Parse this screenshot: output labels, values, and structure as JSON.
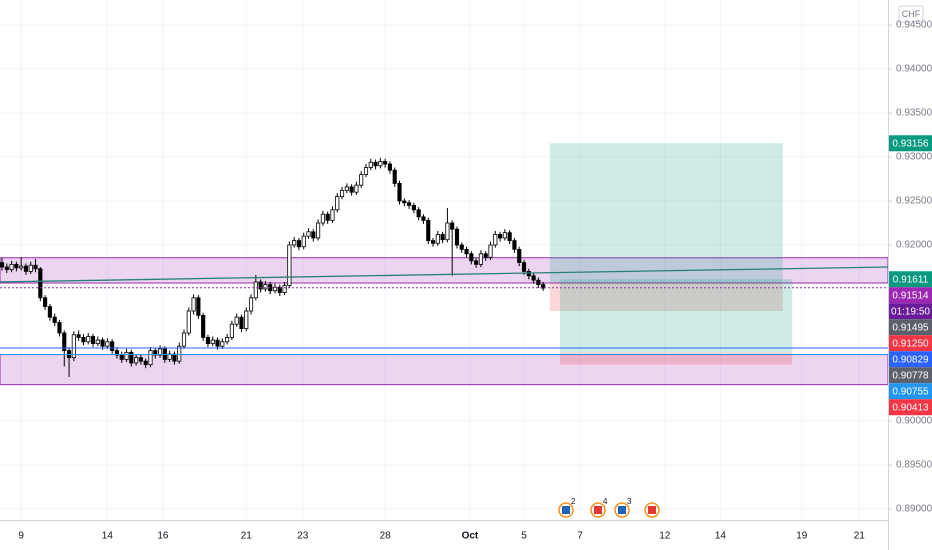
{
  "chart_data": {
    "type": "candlestick",
    "currency": "CHF",
    "xlim": [
      -0.42,
      185
    ],
    "ylim": [
      0.88875,
      0.94784
    ],
    "xticks": [
      {
        "value": 4,
        "label": "9"
      },
      {
        "value": 22,
        "label": "14"
      },
      {
        "value": 33.6,
        "label": "16"
      },
      {
        "value": 51,
        "label": "21"
      },
      {
        "value": 62.8,
        "label": "23"
      },
      {
        "value": 80,
        "label": "28"
      },
      {
        "value": 97.7,
        "label": "Oct"
      },
      {
        "value": 109,
        "label": "5"
      },
      {
        "value": 120.7,
        "label": "7"
      },
      {
        "value": 138.4,
        "label": "12"
      },
      {
        "value": 150,
        "label": "14"
      },
      {
        "value": 167,
        "label": "19"
      },
      {
        "value": 179,
        "label": "21"
      }
    ],
    "yticks": [
      {
        "value": 0.89,
        "label": "0.89000"
      },
      {
        "value": 0.895,
        "label": "0.89500"
      },
      {
        "value": 0.9,
        "label": "0.90000"
      },
      {
        "value": 0.92,
        "label": "0.92000"
      },
      {
        "value": 0.925,
        "label": "0.92500"
      },
      {
        "value": 0.93,
        "label": "0.93000"
      },
      {
        "value": 0.935,
        "label": "0.93500"
      },
      {
        "value": 0.94,
        "label": "0.94000"
      },
      {
        "value": 0.945,
        "label": "0.94500"
      }
    ],
    "grid": true,
    "up_color": "#ffffff",
    "down_color": "#000000",
    "candles": [
      [
        0.918,
        0.9185,
        0.9171,
        0.9175
      ],
      [
        0.9175,
        0.9179,
        0.9168,
        0.9172
      ],
      [
        0.9172,
        0.9182,
        0.9169,
        0.9178
      ],
      [
        0.9178,
        0.9181,
        0.917,
        0.9174
      ],
      [
        0.9174,
        0.9186,
        0.9171,
        0.9176
      ],
      [
        0.9176,
        0.9179,
        0.9166,
        0.917
      ],
      [
        0.917,
        0.9181,
        0.9167,
        0.9177
      ],
      [
        0.9177,
        0.9184,
        0.9169,
        0.9173
      ],
      [
        0.9173,
        0.9175,
        0.9136,
        0.914
      ],
      [
        0.914,
        0.9143,
        0.9126,
        0.913
      ],
      [
        0.913,
        0.9133,
        0.9114,
        0.9118
      ],
      [
        0.9118,
        0.9122,
        0.9108,
        0.9112
      ],
      [
        0.9112,
        0.9115,
        0.9096,
        0.91
      ],
      [
        0.91,
        0.9103,
        0.9062,
        0.908
      ],
      [
        0.908,
        0.9084,
        0.905,
        0.9072
      ],
      [
        0.9072,
        0.9102,
        0.9068,
        0.9098
      ],
      [
        0.9098,
        0.9103,
        0.9091,
        0.9095
      ],
      [
        0.9095,
        0.9099,
        0.9086,
        0.909
      ],
      [
        0.909,
        0.91,
        0.9087,
        0.9096
      ],
      [
        0.9096,
        0.9099,
        0.9084,
        0.9088
      ],
      [
        0.9088,
        0.9096,
        0.9085,
        0.9092
      ],
      [
        0.9092,
        0.9095,
        0.9081,
        0.9085
      ],
      [
        0.9085,
        0.9094,
        0.9082,
        0.909
      ],
      [
        0.909,
        0.9093,
        0.9076,
        0.908
      ],
      [
        0.908,
        0.9084,
        0.9071,
        0.9075
      ],
      [
        0.9075,
        0.9079,
        0.9066,
        0.907
      ],
      [
        0.907,
        0.9082,
        0.9067,
        0.9078
      ],
      [
        0.9078,
        0.9081,
        0.9062,
        0.9066
      ],
      [
        0.9066,
        0.9076,
        0.9063,
        0.9072
      ],
      [
        0.9072,
        0.9075,
        0.9064,
        0.9068
      ],
      [
        0.9068,
        0.9071,
        0.906,
        0.9064
      ],
      [
        0.9064,
        0.9084,
        0.9061,
        0.908
      ],
      [
        0.908,
        0.9083,
        0.9071,
        0.9075
      ],
      [
        0.9075,
        0.9086,
        0.9072,
        0.9082
      ],
      [
        0.9082,
        0.9085,
        0.9066,
        0.907
      ],
      [
        0.907,
        0.908,
        0.9067,
        0.9076
      ],
      [
        0.9076,
        0.9079,
        0.9064,
        0.9068
      ],
      [
        0.9068,
        0.9089,
        0.9065,
        0.9085
      ],
      [
        0.9085,
        0.9104,
        0.9082,
        0.91
      ],
      [
        0.91,
        0.9129,
        0.9097,
        0.9125
      ],
      [
        0.9125,
        0.9144,
        0.9121,
        0.914
      ],
      [
        0.914,
        0.9143,
        0.9116,
        0.912
      ],
      [
        0.912,
        0.9123,
        0.9091,
        0.9095
      ],
      [
        0.9095,
        0.9098,
        0.9084,
        0.9088
      ],
      [
        0.9088,
        0.9096,
        0.9085,
        0.9092
      ],
      [
        0.9092,
        0.9095,
        0.9081,
        0.9085
      ],
      [
        0.9085,
        0.9094,
        0.9082,
        0.909
      ],
      [
        0.909,
        0.9099,
        0.9087,
        0.9095
      ],
      [
        0.9095,
        0.9114,
        0.9092,
        0.911
      ],
      [
        0.911,
        0.9122,
        0.9107,
        0.9118
      ],
      [
        0.9118,
        0.9121,
        0.9101,
        0.9105
      ],
      [
        0.9105,
        0.9129,
        0.9102,
        0.9125
      ],
      [
        0.9125,
        0.9144,
        0.9121,
        0.914
      ],
      [
        0.914,
        0.9166,
        0.9137,
        0.9158
      ],
      [
        0.9158,
        0.9161,
        0.9146,
        0.915
      ],
      [
        0.915,
        0.9159,
        0.9147,
        0.9155
      ],
      [
        0.9155,
        0.9158,
        0.9144,
        0.9148
      ],
      [
        0.9148,
        0.9156,
        0.9145,
        0.9152
      ],
      [
        0.9152,
        0.9155,
        0.9142,
        0.9146
      ],
      [
        0.9146,
        0.9158,
        0.9143,
        0.9154
      ],
      [
        0.9154,
        0.9204,
        0.9151,
        0.92
      ],
      [
        0.92,
        0.9209,
        0.9197,
        0.9205
      ],
      [
        0.9205,
        0.9208,
        0.9194,
        0.9198
      ],
      [
        0.9198,
        0.9214,
        0.9195,
        0.921
      ],
      [
        0.921,
        0.9219,
        0.9207,
        0.9215
      ],
      [
        0.9215,
        0.9218,
        0.9204,
        0.9208
      ],
      [
        0.9208,
        0.9229,
        0.9205,
        0.9225
      ],
      [
        0.9225,
        0.9239,
        0.9222,
        0.9235
      ],
      [
        0.9235,
        0.9238,
        0.9224,
        0.9228
      ],
      [
        0.9228,
        0.9244,
        0.9225,
        0.924
      ],
      [
        0.924,
        0.9259,
        0.9237,
        0.9255
      ],
      [
        0.9255,
        0.9266,
        0.9252,
        0.9262
      ],
      [
        0.9262,
        0.927,
        0.9259,
        0.9266
      ],
      [
        0.9266,
        0.9269,
        0.9256,
        0.926
      ],
      [
        0.926,
        0.9272,
        0.9257,
        0.9268
      ],
      [
        0.9268,
        0.9284,
        0.9265,
        0.928
      ],
      [
        0.928,
        0.9292,
        0.9277,
        0.9288
      ],
      [
        0.9288,
        0.9298,
        0.9285,
        0.9294
      ],
      [
        0.9294,
        0.9297,
        0.9286,
        0.929
      ],
      [
        0.929,
        0.9299,
        0.9287,
        0.9295
      ],
      [
        0.9295,
        0.9298,
        0.9288,
        0.9292
      ],
      [
        0.9292,
        0.9295,
        0.9281,
        0.9285
      ],
      [
        0.9285,
        0.9288,
        0.9266,
        0.927
      ],
      [
        0.927,
        0.9273,
        0.9246,
        0.925
      ],
      [
        0.925,
        0.9253,
        0.9244,
        0.9248
      ],
      [
        0.9248,
        0.9251,
        0.9241,
        0.9245
      ],
      [
        0.9245,
        0.9248,
        0.9236,
        0.924
      ],
      [
        0.924,
        0.9243,
        0.9228,
        0.9232
      ],
      [
        0.9232,
        0.9235,
        0.9224,
        0.9228
      ],
      [
        0.9228,
        0.9231,
        0.9201,
        0.9205
      ],
      [
        0.9205,
        0.9208,
        0.9198,
        0.9202
      ],
      [
        0.9202,
        0.9216,
        0.9199,
        0.9212
      ],
      [
        0.9212,
        0.9215,
        0.9202,
        0.9206
      ],
      [
        0.9206,
        0.9242,
        0.9203,
        0.9225
      ],
      [
        0.9225,
        0.9228,
        0.9165,
        0.9218
      ],
      [
        0.9218,
        0.9221,
        0.9196,
        0.92
      ],
      [
        0.92,
        0.9203,
        0.9191,
        0.9195
      ],
      [
        0.9195,
        0.9198,
        0.9186,
        0.919
      ],
      [
        0.919,
        0.9193,
        0.9178,
        0.9182
      ],
      [
        0.9182,
        0.9185,
        0.9174,
        0.9178
      ],
      [
        0.9178,
        0.9194,
        0.9175,
        0.919
      ],
      [
        0.919,
        0.9193,
        0.9182,
        0.9186
      ],
      [
        0.9186,
        0.9204,
        0.9183,
        0.92
      ],
      [
        0.92,
        0.9216,
        0.9197,
        0.9212
      ],
      [
        0.9212,
        0.9215,
        0.9204,
        0.9208
      ],
      [
        0.9208,
        0.9218,
        0.9205,
        0.9214
      ],
      [
        0.9214,
        0.9217,
        0.9201,
        0.9205
      ],
      [
        0.9205,
        0.9208,
        0.9191,
        0.9195
      ],
      [
        0.9195,
        0.9198,
        0.9176,
        0.918
      ],
      [
        0.918,
        0.9183,
        0.9166,
        0.917
      ],
      [
        0.917,
        0.9173,
        0.9161,
        0.9165
      ],
      [
        0.9165,
        0.9168,
        0.9156,
        0.916
      ],
      [
        0.916,
        0.9163,
        0.9151,
        0.9155
      ],
      [
        0.9155,
        0.9158,
        0.9148,
        0.9151
      ]
    ],
    "zones": [
      {
        "top": 0.91855,
        "bottom": 0.91568,
        "from": -0.42,
        "to": 185,
        "color": "rgba(186,104,200,0.28)",
        "stroke": "#9c27b0"
      },
      {
        "top": 0.90755,
        "bottom": 0.90413,
        "from": -0.42,
        "to": 185,
        "color": "rgba(186,104,200,0.28)",
        "stroke": "#9c27b0"
      },
      {
        "top": 0.93156,
        "bottom": 0.91568,
        "from": 114.4,
        "to": 163,
        "color": "rgba(8,153,129,0.2)"
      },
      {
        "top": 0.91568,
        "bottom": 0.9125,
        "from": 114.4,
        "to": 163,
        "color": "rgba(242,54,69,0.2)"
      },
      {
        "top": 0.91611,
        "bottom": 0.90778,
        "from": 116.5,
        "to": 165,
        "color": "rgba(8,153,129,0.2)"
      },
      {
        "top": 0.90778,
        "bottom": 0.90641,
        "from": 116.5,
        "to": 165,
        "color": "rgba(242,54,69,0.22)"
      }
    ],
    "hlines": [
      {
        "value": 0.90829,
        "color": "#2962ff",
        "dash": false
      },
      {
        "value": 0.90755,
        "color": "#2196f3",
        "dash": false
      },
      {
        "value": 0.91514,
        "color": "#9c27b0",
        "dash": true
      }
    ],
    "trendline": {
      "from": [
        -0.42,
        0.9158
      ],
      "to": [
        185,
        0.9175
      ],
      "color": "#26807a"
    },
    "price_tags": [
      {
        "value": 0.93156,
        "label": "0.93156",
        "color": "#089981"
      },
      {
        "value": 0.91611,
        "label": "0.91611",
        "color": "#089981"
      },
      {
        "value": 0.91514,
        "label": "0.91514",
        "color": "#9c27b0"
      },
      {
        "label": "01:19:50",
        "color": "#6a1b9a"
      },
      {
        "value": 0.91495,
        "label": "0.91495",
        "color": "#5d606b"
      },
      {
        "value": 0.9125,
        "label": "0.91250",
        "color": "#f23645"
      },
      {
        "value": 0.90829,
        "label": "0.90829",
        "color": "#2962ff"
      },
      {
        "value": 0.90778,
        "label": "0.90778",
        "color": "#5d606b"
      },
      {
        "value": 0.90755,
        "label": "0.90755",
        "color": "#2196f3"
      },
      {
        "value": 0.90413,
        "label": "0.90413",
        "color": "#f23645"
      }
    ],
    "event_badges": [
      "2",
      "4",
      "3"
    ]
  }
}
